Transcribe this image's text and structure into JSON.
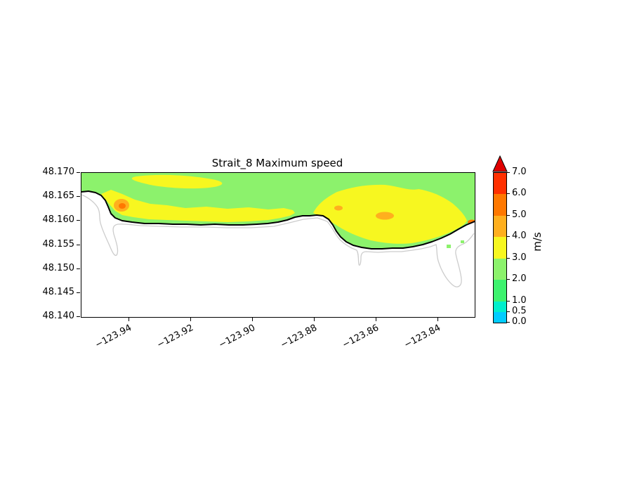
{
  "figure": {
    "title": "Strait_8 Maximum speed"
  },
  "chart_data": {
    "type": "heatmap",
    "subtype": "filled-contour-map",
    "title": "Strait_8 Maximum speed",
    "xlabel": "",
    "ylabel": "",
    "x_tick_labels": [
      "−123.94",
      "−123.92",
      "−123.90",
      "−123.88",
      "−123.86",
      "−123.84"
    ],
    "x_tick_values": [
      -123.94,
      -123.92,
      -123.9,
      -123.88,
      -123.86,
      -123.84
    ],
    "y_tick_labels": [
      "48.140",
      "48.145",
      "48.150",
      "48.155",
      "48.160",
      "48.165",
      "48.170"
    ],
    "y_tick_values": [
      48.14,
      48.145,
      48.15,
      48.155,
      48.16,
      48.165,
      48.17
    ],
    "xlim": [
      -123.9555,
      -123.8282
    ],
    "ylim": [
      48.14,
      48.17
    ],
    "grid": false,
    "colorbar": {
      "label": "m/s",
      "orientation": "vertical",
      "position": "right",
      "extend": "max",
      "levels": [
        0.0,
        0.5,
        1.0,
        2.0,
        3.0,
        4.0,
        5.0,
        6.0,
        7.0
      ],
      "tick_labels": [
        "0.0",
        "0.5",
        "1.0",
        "2.0",
        "3.0",
        "4.0",
        "5.0",
        "6.0",
        "7.0"
      ],
      "segments": [
        {
          "from": 0.0,
          "to": 0.5,
          "color": "#00CCFF"
        },
        {
          "from": 0.5,
          "to": 1.0,
          "color": "#00EFCC"
        },
        {
          "from": 1.0,
          "to": 2.0,
          "color": "#3DF26E"
        },
        {
          "from": 2.0,
          "to": 3.0,
          "color": "#8CF26C"
        },
        {
          "from": 3.0,
          "to": 4.0,
          "color": "#F7F720"
        },
        {
          "from": 4.0,
          "to": 5.0,
          "color": "#FFAF1E"
        },
        {
          "from": 5.0,
          "to": 6.0,
          "color": "#FF7800"
        },
        {
          "from": 6.0,
          "to": 7.0,
          "color": "#FF3000"
        }
      ],
      "arrow_color": "#E00000"
    },
    "contour_line_color": "#000000",
    "coastline_color": "#CCCCCC",
    "features": [
      {
        "name": "main channel band",
        "description": "Speed field fills the strip between lat 48.154 and 48.170; dominant maximum speed 2–3 m/s (light green)",
        "speed_range_ms": [
          2,
          3
        ]
      },
      {
        "name": "south-edge fast band",
        "description": "3–4 m/s (yellow) band hugging the southern shoreline from lon −123.955 to about −123.885 and a broad yellow patch east of −123.885",
        "speed_range_ms": [
          3,
          4
        ]
      },
      {
        "name": "western speed maximum",
        "lon": -123.943,
        "lat": 48.163,
        "speed_range_ms": [
          4,
          5
        ]
      },
      {
        "name": "mid-channel speed maximum",
        "lon": -123.872,
        "lat": 48.1625,
        "speed_range_ms": [
          4,
          5
        ]
      },
      {
        "name": "eastern speed maximum",
        "lon": -123.857,
        "lat": 48.161,
        "speed_range_ms": [
          4,
          5
        ]
      },
      {
        "name": "far-east edge maximum",
        "lon": -123.829,
        "lat": 48.1595,
        "speed_range_ms": [
          5,
          6
        ]
      },
      {
        "name": "shoreline contour",
        "description": "Black contour bounding the field: near lat 48.165 at the west edge, running along ~48.160, dipping to ~48.154 between lon −123.88 and −123.85, rising to ~48.160 at the east edge"
      },
      {
        "name": "coastline",
        "description": "Light gray coastline just south of the field with narrow inlets near lon −123.945 and −123.885 and a bay/peninsula feature near −123.84 reaching lat 48.146"
      }
    ]
  }
}
